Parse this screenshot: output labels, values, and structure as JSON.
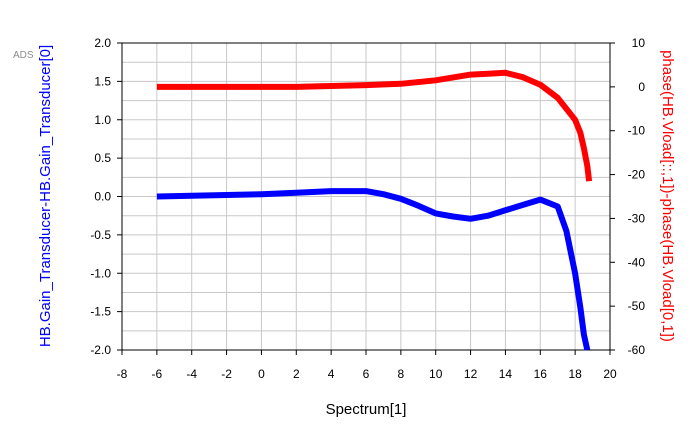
{
  "chart_data": {
    "type": "line",
    "brand_label": "ADS",
    "xlabel": "Spectrum[1]",
    "ylabel_left": "HB.Gain_Transducer-HB.Gain_Transducer[0]",
    "ylabel_right": "phase(HB.Vload[::,1])-phase(HB.Vload[0,1])",
    "xlim": [
      -8,
      20
    ],
    "ylim_left": [
      -2.0,
      2.0
    ],
    "ylim_right": [
      -60,
      10
    ],
    "x_ticks": [
      -8,
      -6,
      -4,
      -2,
      0,
      2,
      4,
      6,
      8,
      10,
      12,
      14,
      16,
      18,
      20
    ],
    "x_tick_labels": [
      "-8",
      "-6",
      "-4",
      "-2",
      "0",
      "2",
      "4",
      "6",
      "8",
      "10",
      "12",
      "14",
      "16",
      "18",
      "20"
    ],
    "y_left_ticks": [
      2.0,
      1.5,
      1.0,
      0.5,
      0.0,
      -0.5,
      -1.0,
      -1.5,
      -2.0
    ],
    "y_left_tick_labels": [
      "2.0",
      "1.5",
      "1.0",
      "0.5",
      "0.0",
      "-0.5",
      "-1.0",
      "-1.5",
      "-2.0"
    ],
    "y_right_ticks": [
      10,
      0,
      -10,
      -20,
      -30,
      -40,
      -50,
      -60
    ],
    "y_right_tick_labels": [
      "10",
      "0",
      "-10",
      "-20",
      "-30",
      "-40",
      "-50",
      "-60"
    ],
    "grid": true,
    "series": [
      {
        "axis": "left",
        "color": "#0000ff",
        "x": [
          -6,
          -4,
          -2,
          0,
          2,
          4,
          6,
          7,
          8,
          9,
          10,
          11,
          12,
          13,
          14,
          15,
          16,
          17,
          17.5,
          18,
          18.3,
          18.5,
          18.7
        ],
        "y": [
          0.0,
          0.01,
          0.02,
          0.03,
          0.05,
          0.07,
          0.07,
          0.03,
          -0.03,
          -0.12,
          -0.22,
          -0.26,
          -0.29,
          -0.25,
          -0.18,
          -0.11,
          -0.04,
          -0.13,
          -0.45,
          -1.0,
          -1.45,
          -1.8,
          -2.0
        ]
      },
      {
        "axis": "right",
        "color": "#ff0000",
        "x": [
          -6,
          -2,
          2,
          6,
          8,
          10,
          12,
          13,
          14,
          15,
          16,
          17,
          17.5,
          18,
          18.3,
          18.5,
          18.7,
          18.8
        ],
        "y": [
          0.0,
          0.0,
          0.0,
          0.4,
          0.7,
          1.5,
          2.8,
          3.0,
          3.2,
          2.2,
          0.5,
          -2.5,
          -5.0,
          -7.5,
          -10.5,
          -14.0,
          -18.0,
          -21.5
        ]
      }
    ]
  }
}
